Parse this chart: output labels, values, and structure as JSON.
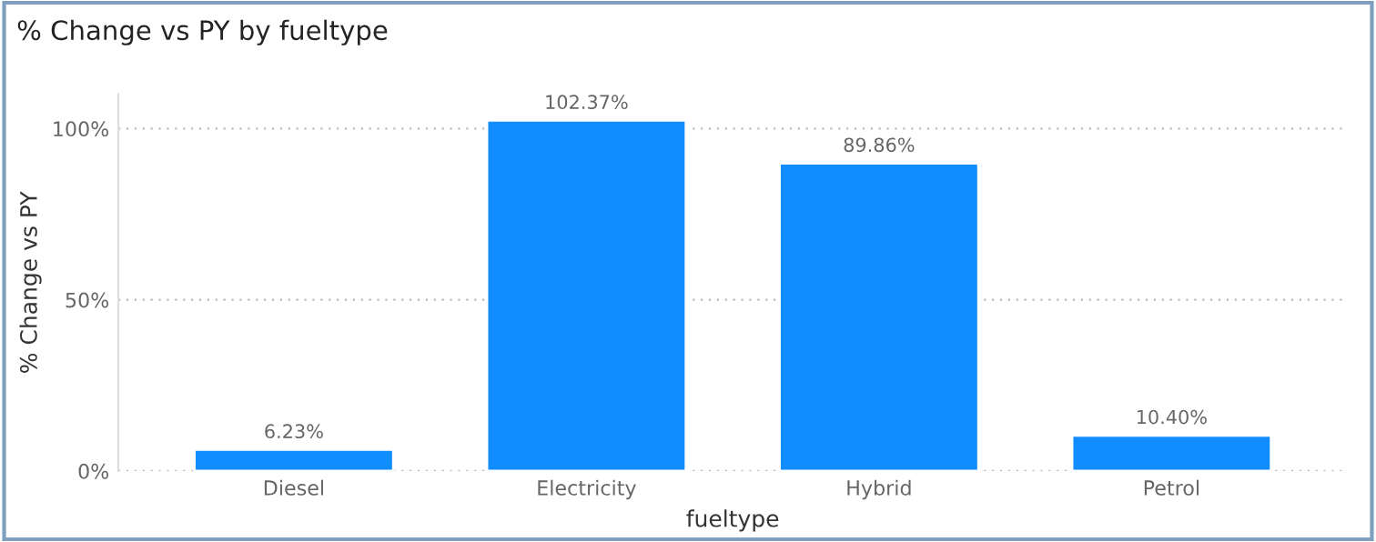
{
  "chart_data": {
    "type": "bar",
    "title": "% Change vs PY by fueltype",
    "xlabel": "fueltype",
    "ylabel": "% Change vs PY",
    "categories": [
      "Diesel",
      "Electricity",
      "Hybrid",
      "Petrol"
    ],
    "values": [
      6.23,
      102.37,
      89.86,
      10.4
    ],
    "color": "#118dff",
    "value_labels": [
      "6.23%",
      "102.37%",
      "89.86%",
      "10.40%"
    ],
    "ylim": [
      0,
      110
    ],
    "yticks": [
      {
        "value": 0,
        "label": "0%"
      },
      {
        "value": 50,
        "label": "50%"
      },
      {
        "value": 100,
        "label": "100%"
      }
    ],
    "grid": "y"
  }
}
